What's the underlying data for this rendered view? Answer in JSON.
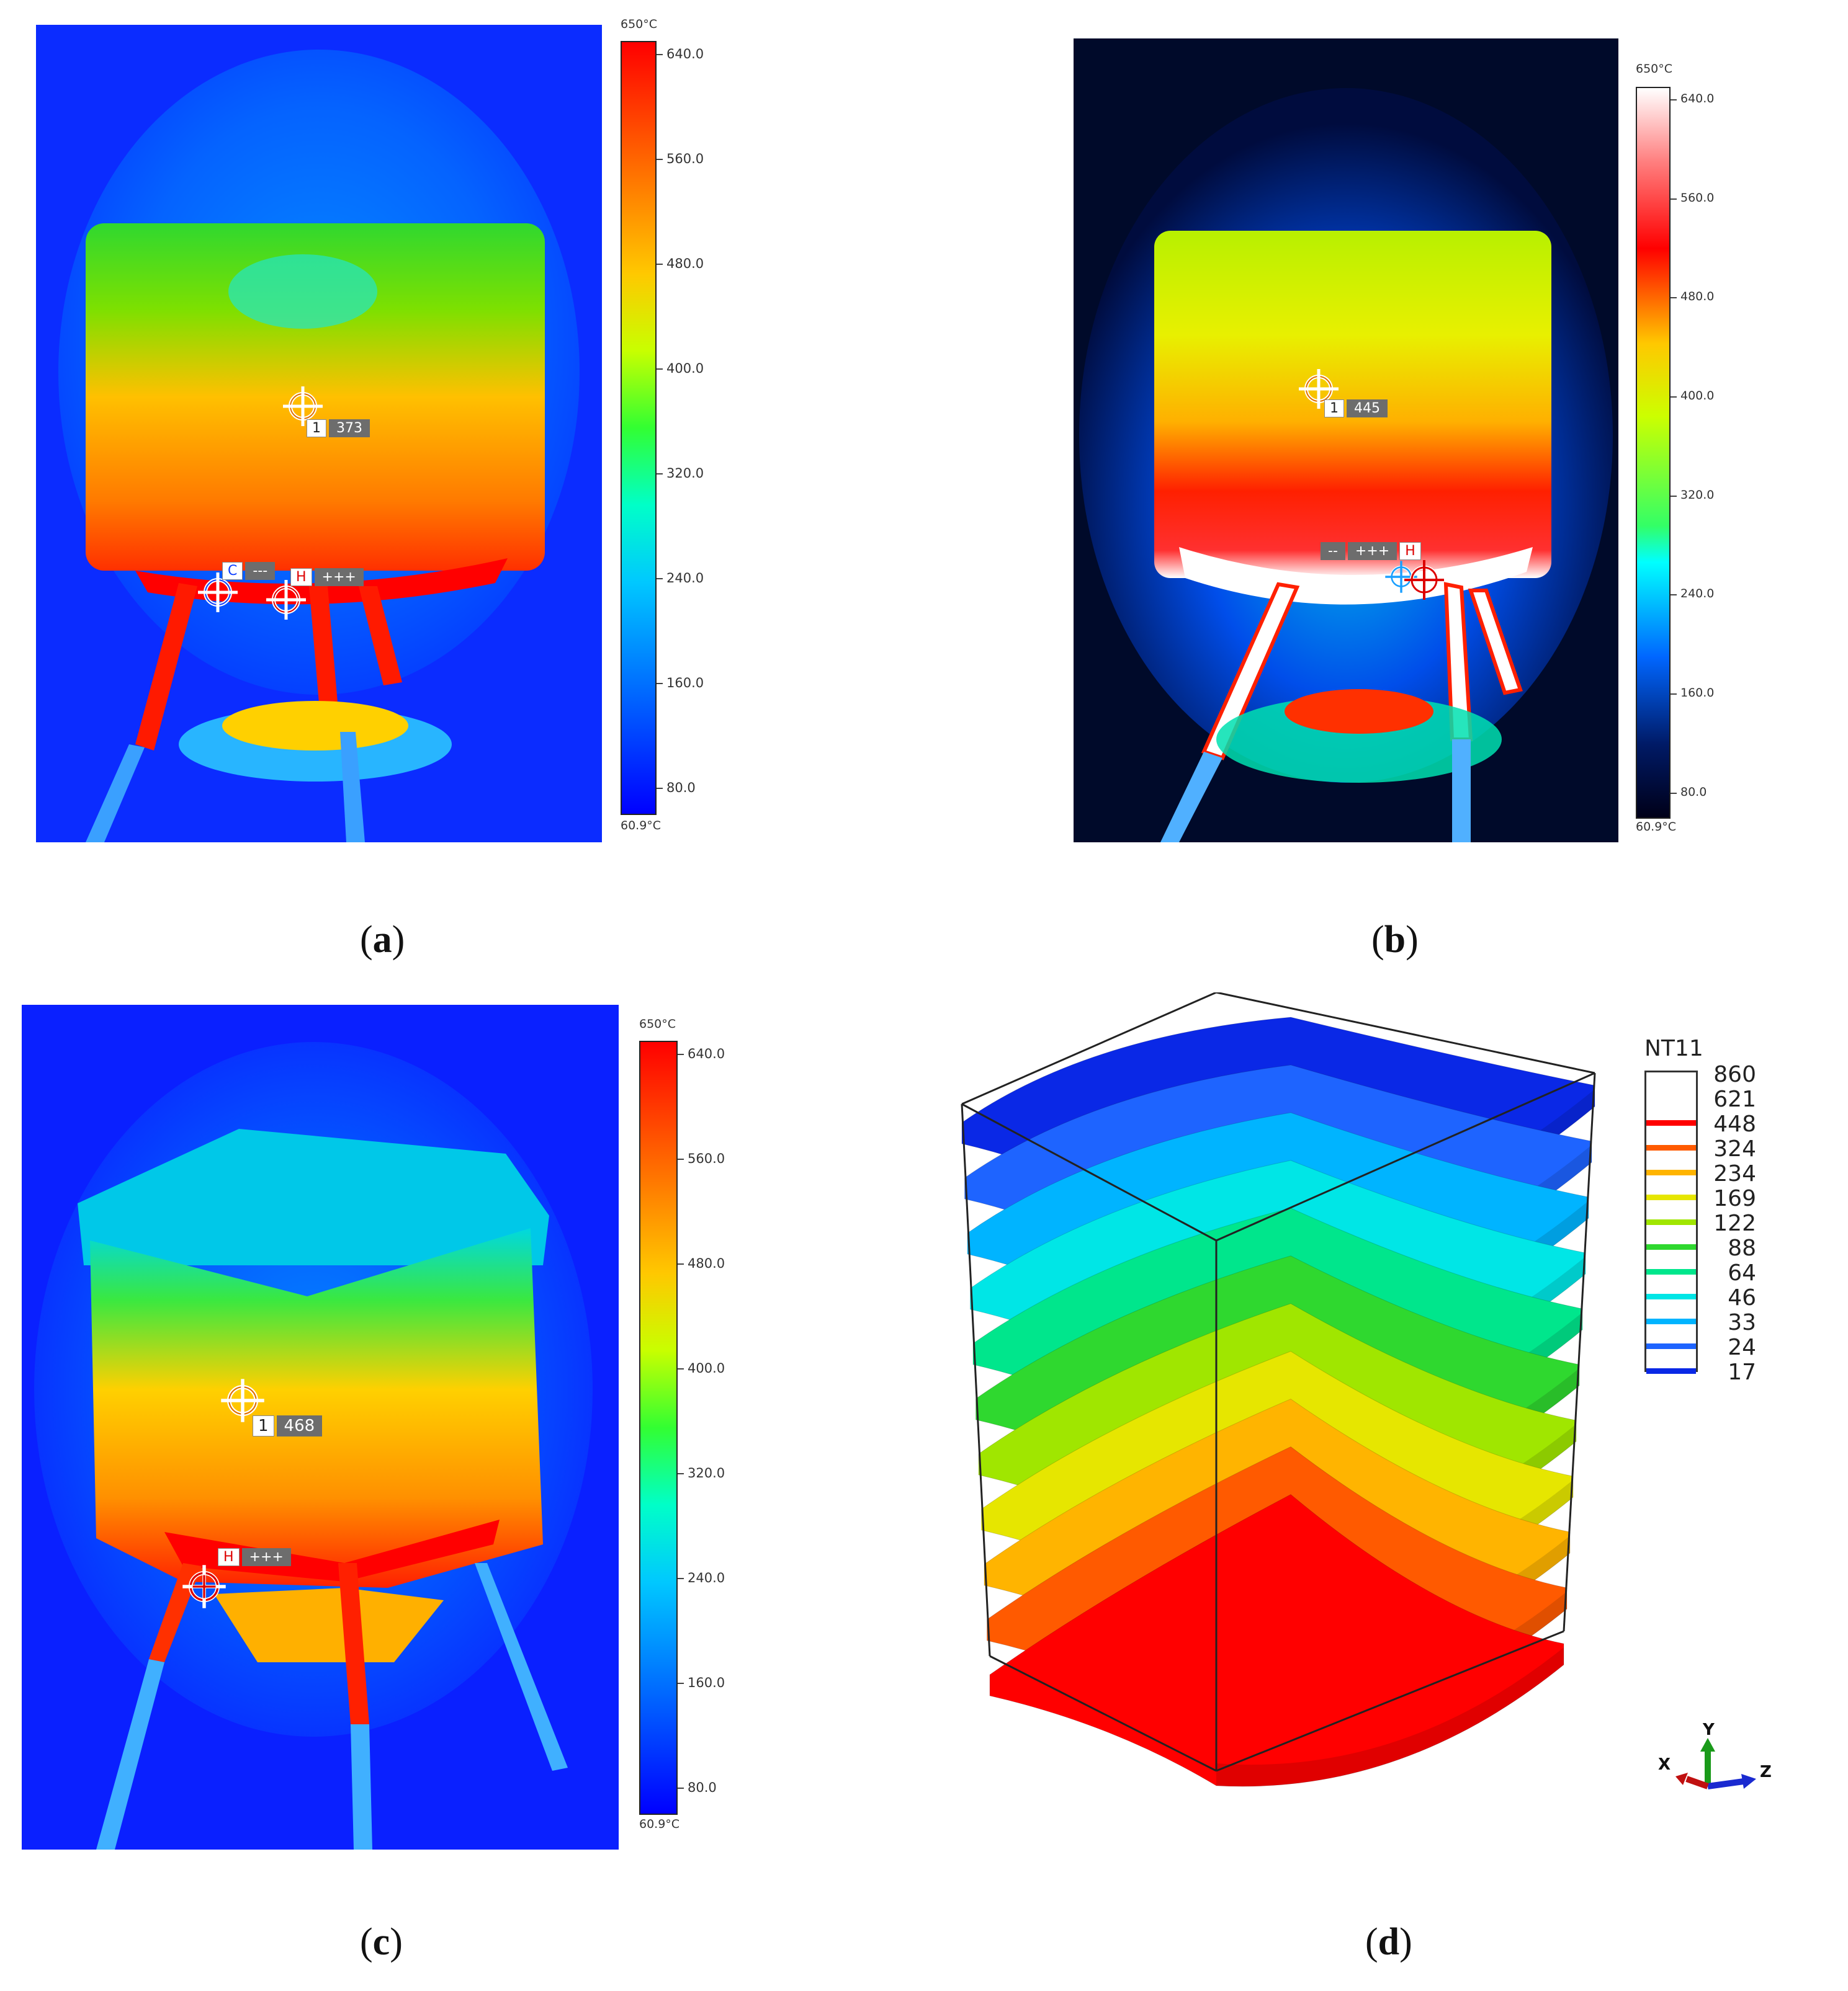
{
  "panels": {
    "a": {
      "caption": "a",
      "scale_top": "650°C",
      "scale_bottom": "60.9°C",
      "ticks": [
        "640.0",
        "560.0",
        "480.0",
        "400.0",
        "320.0",
        "240.0",
        "160.0",
        "80.0"
      ],
      "spot_id": "1",
      "spot_value": "373",
      "cold_label": "C",
      "cold_value": "---",
      "hot_label": "H",
      "hot_value": "+++"
    },
    "b": {
      "caption": "b",
      "scale_top": "650°C",
      "scale_bottom": "60.9°C",
      "ticks": [
        "640.0",
        "560.0",
        "480.0",
        "400.0",
        "320.0",
        "240.0",
        "160.0",
        "80.0"
      ],
      "spot_id": "1",
      "spot_value": "445",
      "cold_value": "--",
      "hot_label": "H",
      "hot_value": "+++"
    },
    "c": {
      "caption": "c",
      "scale_top": "650°C",
      "scale_bottom": "60.9°C",
      "ticks": [
        "640.0",
        "560.0",
        "480.0",
        "400.0",
        "320.0",
        "240.0",
        "160.0",
        "80.0"
      ],
      "spot_id": "1",
      "spot_value": "468",
      "hot_label": "H",
      "hot_value": "+++"
    },
    "d": {
      "caption": "d",
      "legend_title": "NT11",
      "legend_values": [
        "860",
        "621",
        "448",
        "324",
        "234",
        "169",
        "122",
        "88",
        "64",
        "46",
        "33",
        "24",
        "17"
      ],
      "legend_colors": [
        "#ffffff",
        "#ff0000",
        "#ff5a00",
        "#ffb400",
        "#e6e600",
        "#a0e600",
        "#2fd82f",
        "#00e68c",
        "#00e6e6",
        "#00b4ff",
        "#1e64ff",
        "#0a28e6"
      ],
      "layer_colors": [
        "#0a28e6",
        "#1e64ff",
        "#00b4ff",
        "#00e6e6",
        "#00e68c",
        "#2fd82f",
        "#a0e600",
        "#e6e600",
        "#ffb400",
        "#ff5a00",
        "#ff0000"
      ],
      "axes": {
        "x": "X",
        "y": "Y",
        "z": "Z"
      }
    }
  },
  "colors": {
    "jet": [
      "#0000ff",
      "#0064ff",
      "#00c8ff",
      "#00ffc8",
      "#32ff32",
      "#c8ff00",
      "#ffc800",
      "#ff6400",
      "#ff0000"
    ],
    "iron": [
      "#000018",
      "#001a66",
      "#0066ff",
      "#00ffff",
      "#33ff66",
      "#ccff00",
      "#ffcc00",
      "#ff2200",
      "#ffffff"
    ]
  }
}
